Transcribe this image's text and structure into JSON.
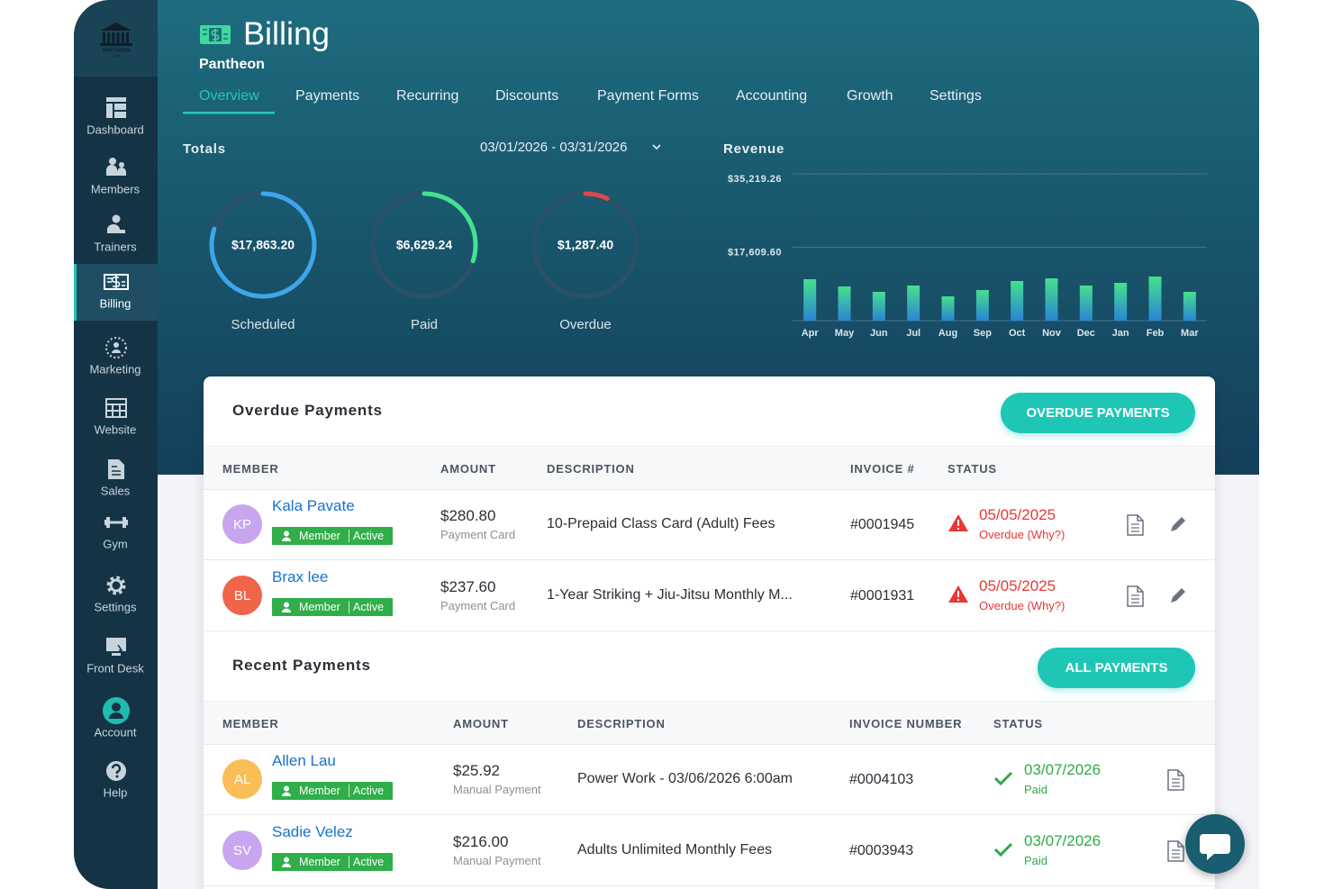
{
  "sidebar": {
    "logo": [
      "PANTHEON",
      "GYM"
    ],
    "active": 3,
    "items": [
      "Dashboard",
      "Members",
      "Trainers",
      "Billing",
      "Marketing",
      "Website",
      "Sales",
      "Gym",
      "Settings",
      "Front Desk",
      "Account",
      "Help"
    ]
  },
  "header": {
    "title": "Billing",
    "subtitle": "Pantheon"
  },
  "tabs": {
    "active": 0,
    "items": [
      "Overview",
      "Payments",
      "Recurring",
      "Discounts",
      "Payment Forms",
      "Accounting",
      "Growth",
      "Settings"
    ]
  },
  "totals": {
    "label": "Totals",
    "date_range": "03/01/2026 - 03/31/2026",
    "rings": [
      {
        "amount": "$17,863.20",
        "label": "Scheduled",
        "percent": 80,
        "color": "#3ea6ea"
      },
      {
        "amount": "$6,629.24",
        "label": "Paid",
        "percent": 30,
        "color": "#45e192"
      },
      {
        "amount": "$1,287.40",
        "label": "Overdue",
        "percent": 7,
        "color": "#e0474a"
      }
    ]
  },
  "chart_data": {
    "type": "bar",
    "title": "Revenue",
    "categories": [
      "Apr",
      "May",
      "Jun",
      "Jul",
      "Aug",
      "Sep",
      "Oct",
      "Nov",
      "Dec",
      "Jan",
      "Feb",
      "Mar"
    ],
    "values": [
      9940,
      8210,
      6910,
      8430,
      5830,
      7350,
      9510,
      10150,
      8430,
      9070,
      10590,
      6910
    ],
    "gradient": [
      "#46e08c",
      "#2a84d4"
    ],
    "ylim": [
      0,
      35219.26
    ],
    "yticks": [
      {
        "value": 17609.6,
        "label": "$17,609.60"
      },
      {
        "value": 35219.26,
        "label": "$35,219.26"
      }
    ],
    "grid": true
  },
  "overdue": {
    "title": "Overdue Payments",
    "button": "OVERDUE PAYMENTS",
    "status_icon": "warning",
    "status_color": "#e53935",
    "columns": [
      "MEMBER",
      "AMOUNT",
      "DESCRIPTION",
      "INVOICE #",
      "STATUS"
    ],
    "rows": [
      {
        "initials": "KP",
        "avatar": "#c7a6ef",
        "name": "Kala Pavate",
        "badge": [
          "Member",
          "Active"
        ],
        "amount": "$280.80",
        "method": "Payment Card",
        "description": "10-Prepaid Class Card (Adult) Fees",
        "invoice": "#0001945",
        "date": "05/05/2025",
        "status": "Overdue (Why?)"
      },
      {
        "initials": "BL",
        "avatar": "#f0644a",
        "name": "Brax lee",
        "badge": [
          "Member",
          "Active"
        ],
        "amount": "$237.60",
        "method": "Payment Card",
        "description": "1-Year Striking + Jiu-Jitsu Monthly M...",
        "invoice": "#0001931",
        "date": "05/05/2025",
        "status": "Overdue (Why?)"
      }
    ]
  },
  "recent": {
    "title": "Recent Payments",
    "button": "ALL PAYMENTS",
    "status_icon": "check",
    "status_color": "#2eaa48",
    "columns": [
      "MEMBER",
      "AMOUNT",
      "DESCRIPTION",
      "INVOICE NUMBER",
      "STATUS"
    ],
    "rows": [
      {
        "initials": "AL",
        "avatar": "#fbbd57",
        "name": "Allen Lau",
        "badge": [
          "Member",
          "Active"
        ],
        "amount": "$25.92",
        "method": "Manual Payment",
        "description": "Power Work - 03/06/2026 6:00am",
        "invoice": "#0004103",
        "date": "03/07/2026",
        "status": "Paid"
      },
      {
        "initials": "SV",
        "avatar": "#c7a6ef",
        "name": "Sadie Velez",
        "badge": [
          "Member",
          "Active"
        ],
        "amount": "$216.00",
        "method": "Manual Payment",
        "description": "Adults Unlimited Monthly Fees",
        "invoice": "#0003943",
        "date": "03/07/2026",
        "status": "Paid"
      }
    ]
  }
}
